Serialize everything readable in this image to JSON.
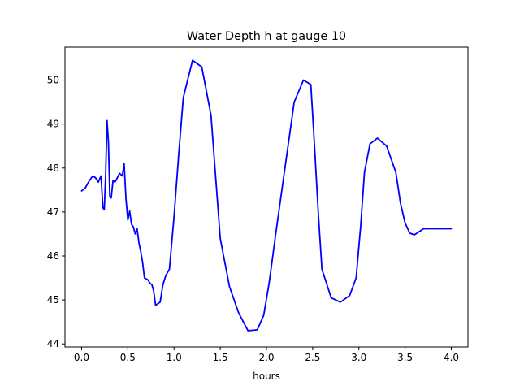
{
  "chart_data": {
    "type": "line",
    "title": "Water Depth h at gauge 10",
    "xlabel": "hours",
    "ylabel": "",
    "xlim": [
      -0.18,
      4.18
    ],
    "ylim": [
      43.93,
      50.75
    ],
    "xticks": [
      0.0,
      0.5,
      1.0,
      1.5,
      2.0,
      2.5,
      3.0,
      3.5,
      4.0
    ],
    "xtick_labels": [
      "0.0",
      "0.5",
      "1.0",
      "1.5",
      "2.0",
      "2.5",
      "3.0",
      "3.5",
      "4.0"
    ],
    "yticks": [
      44,
      45,
      46,
      47,
      48,
      49,
      50
    ],
    "ytick_labels": [
      "44",
      "45",
      "46",
      "47",
      "48",
      "49",
      "50"
    ],
    "grid": false,
    "legend": "none",
    "series": [
      {
        "color": "#0000ff",
        "x": [
          0.0,
          0.04,
          0.08,
          0.12,
          0.15,
          0.18,
          0.21,
          0.23,
          0.245,
          0.26,
          0.275,
          0.29,
          0.305,
          0.32,
          0.34,
          0.36,
          0.38,
          0.41,
          0.44,
          0.46,
          0.48,
          0.5,
          0.52,
          0.54,
          0.56,
          0.58,
          0.6,
          0.62,
          0.64,
          0.66,
          0.68,
          0.7,
          0.72,
          0.74,
          0.76,
          0.78,
          0.8,
          0.85,
          0.88,
          0.91,
          0.95,
          1.0,
          1.05,
          1.1,
          1.2,
          1.3,
          1.4,
          1.45,
          1.5,
          1.6,
          1.7,
          1.8,
          1.9,
          1.97,
          2.03,
          2.1,
          2.2,
          2.3,
          2.4,
          2.48,
          2.52,
          2.56,
          2.6,
          2.7,
          2.8,
          2.9,
          2.97,
          3.02,
          3.06,
          3.12,
          3.2,
          3.3,
          3.4,
          3.45,
          3.5,
          3.55,
          3.6,
          3.7,
          3.8,
          3.88,
          3.92,
          3.96,
          4.0
        ],
        "y": [
          47.48,
          47.55,
          47.7,
          47.82,
          47.78,
          47.68,
          47.82,
          47.1,
          47.05,
          47.85,
          49.08,
          48.6,
          47.35,
          47.32,
          47.72,
          47.68,
          47.75,
          47.88,
          47.82,
          48.1,
          47.3,
          46.82,
          47.02,
          46.72,
          46.66,
          46.5,
          46.62,
          46.3,
          46.1,
          45.85,
          45.5,
          45.48,
          45.45,
          45.38,
          45.35,
          45.2,
          44.88,
          44.95,
          45.35,
          45.55,
          45.7,
          46.9,
          48.3,
          49.6,
          50.45,
          50.3,
          49.2,
          47.8,
          46.4,
          45.3,
          44.7,
          44.3,
          44.32,
          44.65,
          45.4,
          46.5,
          48.0,
          49.5,
          50.0,
          49.9,
          48.5,
          47.0,
          45.7,
          45.05,
          44.95,
          45.1,
          45.5,
          46.7,
          47.9,
          48.55,
          48.68,
          48.5,
          47.9,
          47.2,
          46.75,
          46.52,
          46.48,
          46.62,
          46.62,
          46.62,
          46.62,
          46.62,
          46.62
        ]
      }
    ]
  }
}
